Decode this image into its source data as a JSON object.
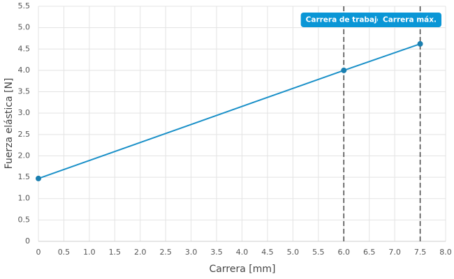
{
  "chart_data": {
    "type": "line",
    "x_label": "Carrera [mm]",
    "y_label": "Fuerza elástica [N]",
    "x": [
      0,
      6,
      7.5
    ],
    "series": [
      {
        "color": "#1a90c8",
        "values": [
          1.47,
          4.0,
          4.62
        ]
      }
    ],
    "xlim": [
      0,
      8
    ],
    "ylim": [
      0,
      5.5
    ],
    "xticks": [
      0,
      0.5,
      {
        "value": 1,
        "label": "1.0"
      },
      1.5,
      {
        "value": 2,
        "label": "2.0"
      },
      2.5,
      {
        "value": 3,
        "label": "3.0"
      },
      3.5,
      {
        "value": 4,
        "label": "4.0"
      },
      4.5,
      {
        "value": 5,
        "label": "5.0"
      },
      5.5,
      {
        "value": 6,
        "label": "6.0"
      },
      6.5,
      {
        "value": 7,
        "label": "7.0"
      },
      7.5,
      {
        "value": 8,
        "label": "8.0"
      }
    ],
    "yticks": [
      0,
      0.5,
      {
        "value": 1,
        "label": "1.0"
      },
      1.5,
      {
        "value": 2,
        "label": "2.0"
      },
      2.5,
      {
        "value": 3,
        "label": "3.0"
      },
      3.5,
      {
        "value": 4,
        "label": "4.0"
      },
      4.5,
      {
        "value": 5,
        "label": "5.0"
      },
      5.5
    ],
    "grid": true,
    "annotations": [
      {
        "x": 6,
        "label": "Carrera de trabajo"
      },
      {
        "x": 7.5,
        "label": "Carrera máx."
      }
    ]
  }
}
